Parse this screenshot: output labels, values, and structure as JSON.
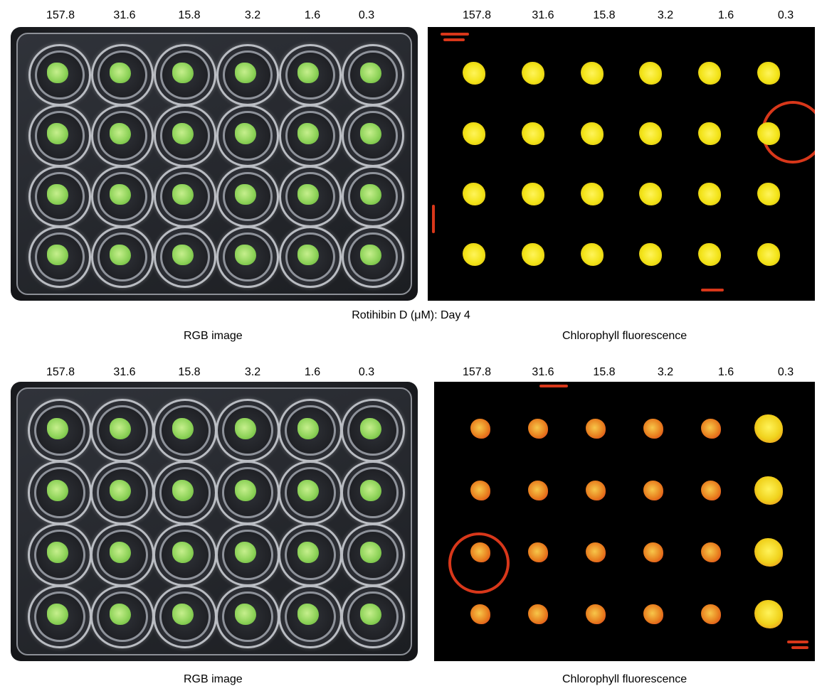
{
  "title": "Rotihibin D (μM): Day 4",
  "concentrations": [
    "157.8",
    "31.6",
    "15.8",
    "3.2",
    "1.6",
    "0.3"
  ],
  "rgb_label": "RGB image",
  "fluorescence_label": "Chlorophyll fluorescence",
  "plate_rows": 4,
  "plate_cols": 6,
  "colors": {
    "seedling_green": "#8fd35a",
    "fluor_yellow": "#f2e318",
    "fluor_orange": "#e8801f",
    "fluor_red": "#d8371a",
    "background_black": "#000000"
  }
}
